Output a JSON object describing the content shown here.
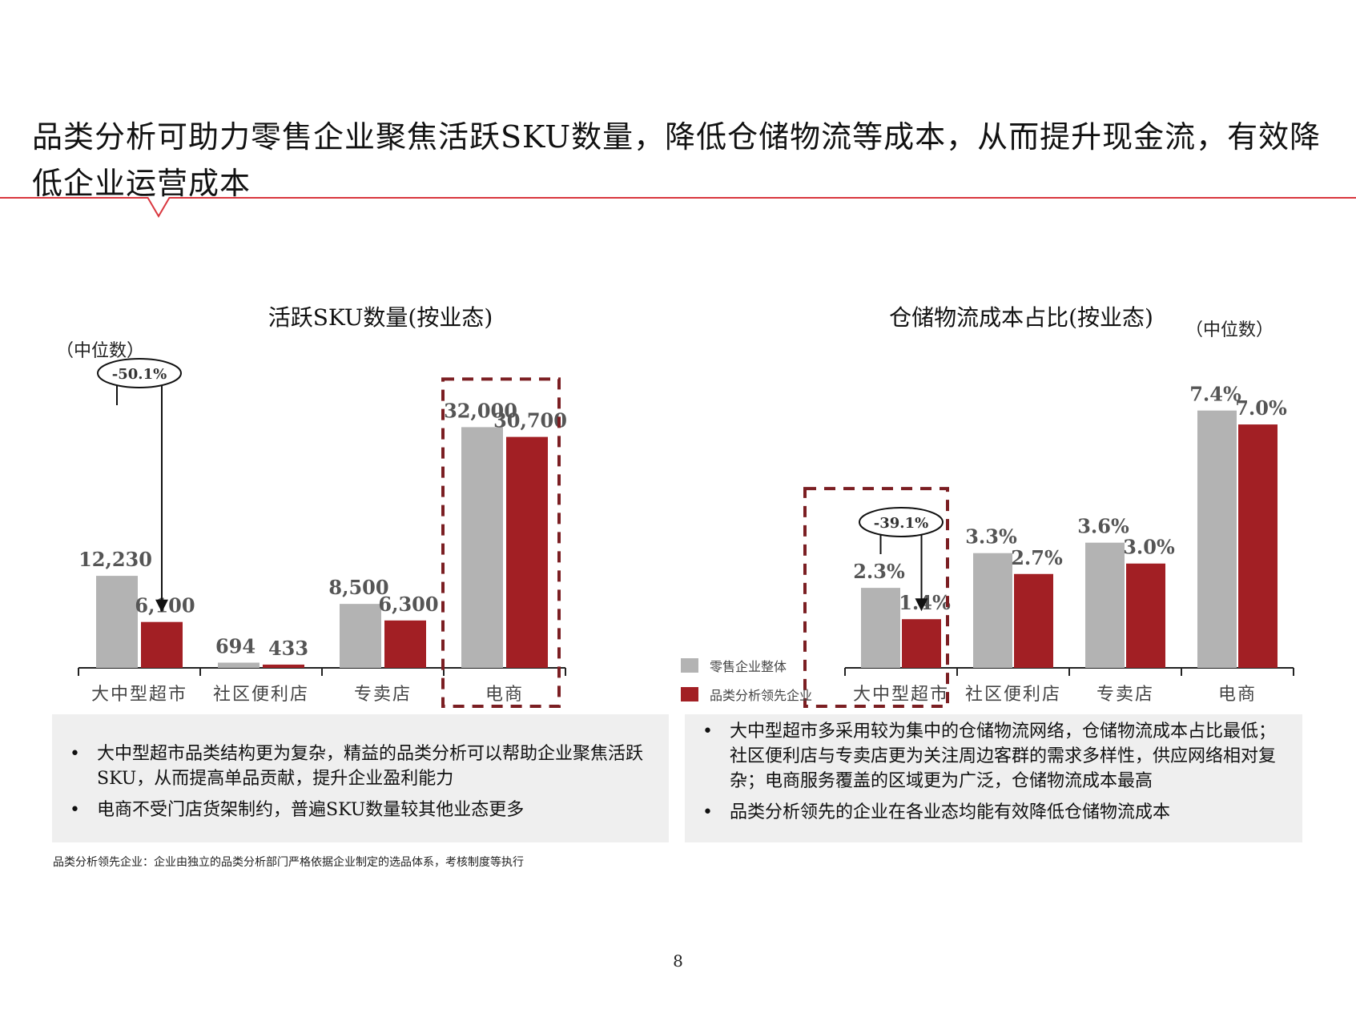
{
  "title": "品类分析可助力零售企业聚焦活跃SKU数量，降低仓储物流等成本，从而提升现金流，有效降低企业运营成本",
  "colors": {
    "accent": "#d9363e",
    "gray_bar": "#b3b3b3",
    "red_bar": "#a21f24",
    "box": "#efefef",
    "dash": "#7b1e22"
  },
  "chart_data": [
    {
      "type": "bar",
      "title": "活跃SKU数量(按业态)",
      "unit_note": "（中位数）",
      "categories": [
        "大中型超市",
        "社区便利店",
        "专卖店",
        "电商"
      ],
      "series": [
        {
          "name": "零售企业整体",
          "color": "#b3b3b3",
          "values": [
            12230,
            694,
            8500,
            32000
          ],
          "labels": [
            "12,230",
            "694",
            "8,500",
            "32,000"
          ]
        },
        {
          "name": "品类分析领先企业",
          "color": "#a21f24",
          "values": [
            6100,
            433,
            6300,
            30700
          ],
          "labels": [
            "6,100",
            "433",
            "6,300",
            "30,700"
          ]
        }
      ],
      "ylim": [
        0,
        33000
      ],
      "annotation": {
        "category": "大中型超市",
        "text": "-50.1%"
      },
      "highlight": "电商"
    },
    {
      "type": "bar",
      "title": "仓储物流成本占比(按业态)",
      "unit_note": "（中位数）",
      "categories": [
        "大中型超市",
        "社区便利店",
        "专卖店",
        "电商"
      ],
      "series": [
        {
          "name": "零售企业整体",
          "color": "#b3b3b3",
          "values": [
            2.3,
            3.3,
            3.6,
            7.4
          ],
          "labels": [
            "2.3%",
            "3.3%",
            "3.6%",
            "7.4%"
          ]
        },
        {
          "name": "品类分析领先企业",
          "color": "#a21f24",
          "values": [
            1.4,
            2.7,
            3.0,
            7.0
          ],
          "labels": [
            "1.4%",
            "2.7%",
            "3.0%",
            "7.0%"
          ]
        }
      ],
      "ylim": [
        0,
        7.6
      ],
      "annotation": {
        "category": "大中型超市",
        "text": "-39.1%"
      },
      "highlight": "大中型超市",
      "legend_position": "bottom-left"
    }
  ],
  "left_box": {
    "bullets": [
      "大中型超市品类结构更为复杂，精益的品类分析可以帮助企业聚焦活跃SKU，从而提高单品贡献，提升企业盈利能力",
      "电商不受门店货架制约，普遍SKU数量较其他业态更多"
    ]
  },
  "right_box": {
    "bullets": [
      "大中型超市多采用较为集中的仓储物流网络，仓储物流成本占比最低；社区便利店与专卖店更为关注周边客群的需求多样性，供应网络相对复杂；电商服务覆盖的区域更为广泛，仓储物流成本最高",
      "品类分析领先的企业在各业态均能有效降低仓储物流成本"
    ]
  },
  "footnote": "品类分析领先企业：企业由独立的品类分析部门严格依据企业制定的选品体系，考核制度等执行",
  "page_number": "8"
}
